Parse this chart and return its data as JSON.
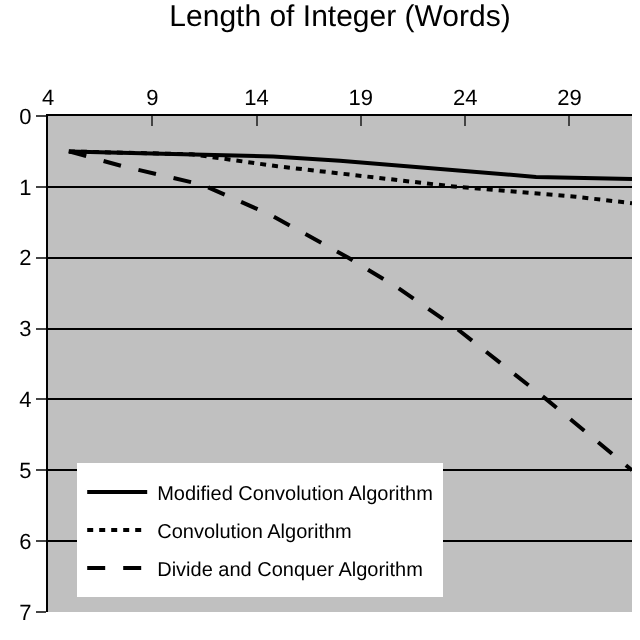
{
  "chart_data": {
    "type": "line",
    "xlabel": "Length of Integer (Words)",
    "xlim": [
      4,
      32
    ],
    "xticks": [
      4,
      9,
      14,
      19,
      24,
      29
    ],
    "ylim": [
      7,
      0
    ],
    "yticks": [
      0,
      1,
      2,
      3,
      4,
      5,
      6,
      7
    ],
    "grid": "y",
    "legend": "bottom left",
    "marker": "none",
    "series": [
      {
        "name": "Modified Convolution Algorithm",
        "color": "#000000",
        "line_style": "solid",
        "x": [
          5,
          14.8,
          18,
          27.4,
          32
        ],
        "values": [
          0.5,
          0.57,
          0.63,
          0.86,
          0.89
        ]
      },
      {
        "name": "Convolution Algorithm",
        "color": "#000000",
        "line_style": "dotted",
        "x": [
          5,
          10.9,
          15,
          23.6,
          29.3,
          32
        ],
        "values": [
          0.5,
          0.54,
          0.71,
          1.0,
          1.14,
          1.23
        ]
      },
      {
        "name": "Divide and Conquer Algorithm",
        "color": "#000000",
        "line_style": "dashed",
        "x": [
          5,
          7.6,
          11.4,
          14.7,
          18.4,
          20.8,
          23.6,
          27.9,
          32
        ],
        "values": [
          0.5,
          0.71,
          0.97,
          1.4,
          2.0,
          2.43,
          3.0,
          4.0,
          5.0
        ]
      }
    ]
  }
}
